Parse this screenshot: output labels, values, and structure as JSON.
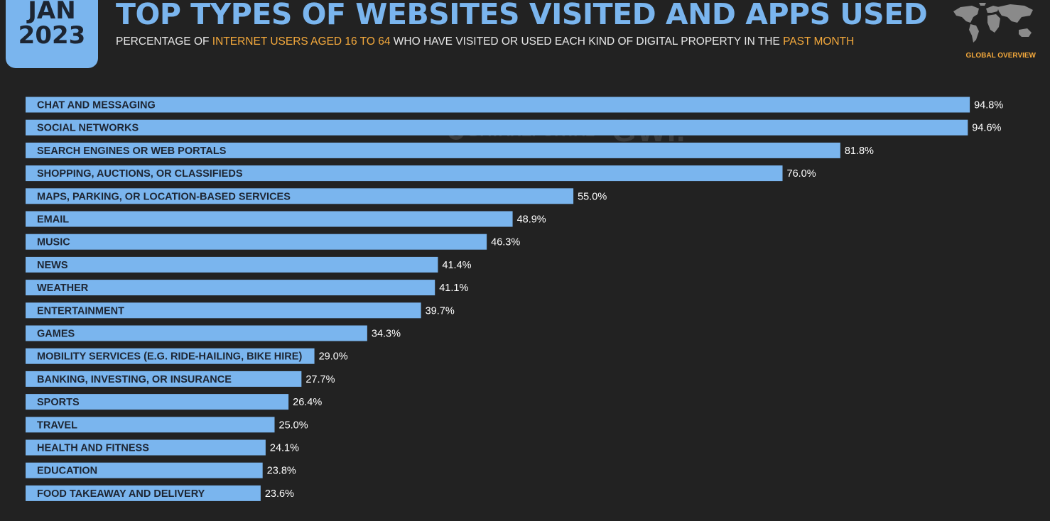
{
  "header": {
    "month": "JAN",
    "year": "2023",
    "title": "TOP TYPES OF WEBSITES VISITED AND APPS USED",
    "subtitle_part1": "PERCENTAGE OF ",
    "subtitle_highlight1": "INTERNET USERS AGED 16 TO 64",
    "subtitle_part2": " WHO HAVE VISITED OR USED EACH KIND OF DIGITAL PROPERTY IN THE ",
    "subtitle_highlight2": "PAST MONTH",
    "region": "GLOBAL OVERVIEW",
    "map_icon": "world-map-icon"
  },
  "watermark": {
    "brand1": "DATAREPORTAL",
    "brand2": "GWI."
  },
  "colors": {
    "bar": "#7ab5ee",
    "accent": "#f4a93c",
    "background": "#222222"
  },
  "chart_data": {
    "type": "bar",
    "orientation": "horizontal",
    "categories": [
      "CHAT AND MESSAGING",
      "SOCIAL NETWORKS",
      "SEARCH ENGINES OR WEB PORTALS",
      "SHOPPING, AUCTIONS, OR CLASSIFIEDS",
      "MAPS, PARKING, OR LOCATION-BASED SERVICES",
      "EMAIL",
      "MUSIC",
      "NEWS",
      "WEATHER",
      "ENTERTAINMENT",
      "GAMES",
      "MOBILITY SERVICES (E.G. RIDE-HAILING, BIKE HIRE)",
      "BANKING, INVESTING, OR INSURANCE",
      "SPORTS",
      "TRAVEL",
      "HEALTH AND FITNESS",
      "EDUCATION",
      "FOOD TAKEAWAY AND DELIVERY"
    ],
    "values": [
      94.8,
      94.6,
      81.8,
      76.0,
      55.0,
      48.9,
      46.3,
      41.4,
      41.1,
      39.7,
      34.3,
      29.0,
      27.7,
      26.4,
      25.0,
      24.1,
      23.8,
      23.6
    ],
    "value_labels": [
      "94.8%",
      "94.6%",
      "81.8%",
      "76.0%",
      "55.0%",
      "48.9%",
      "46.3%",
      "41.4%",
      "41.1%",
      "39.7%",
      "34.3%",
      "29.0%",
      "27.7%",
      "26.4%",
      "25.0%",
      "24.1%",
      "23.8%",
      "23.6%"
    ],
    "unit": "%",
    "xlim": [
      0,
      100
    ],
    "grid": false,
    "legend": "none"
  }
}
